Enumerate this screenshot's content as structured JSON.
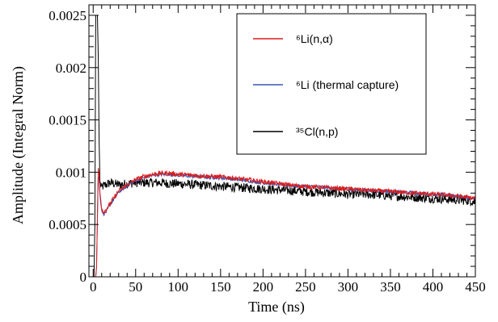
{
  "chart_data": {
    "type": "line",
    "title": "",
    "xlabel": "Time (ns)",
    "ylabel": "Amplitude (Integral Norm)",
    "xlim": [
      -5,
      450
    ],
    "ylim": [
      0,
      0.0026
    ],
    "x_ticks": [
      0,
      50,
      100,
      150,
      200,
      250,
      300,
      350,
      400,
      450
    ],
    "x_tick_labels": [
      "0",
      "50",
      "100",
      "150",
      "200",
      "250",
      "300",
      "350",
      "400",
      "450"
    ],
    "y_ticks": [
      0,
      0.0005,
      0.001,
      0.0015,
      0.002,
      0.0025
    ],
    "y_tick_labels": [
      "0",
      "0.0005",
      "0.001",
      "0.0015",
      "0.002",
      "0.0025"
    ],
    "grid": false,
    "legend_position": "top-right",
    "series": [
      {
        "name": "⁶Li(n,α)",
        "color": "#dd1c1c",
        "x": [
          -5,
          0,
          1,
          2,
          3,
          4,
          5,
          6,
          7,
          8,
          10,
          12,
          15,
          20,
          25,
          30,
          40,
          50,
          60,
          70,
          80,
          90,
          100,
          120,
          140,
          160,
          180,
          200,
          220,
          240,
          260,
          280,
          300,
          320,
          340,
          360,
          380,
          400,
          420,
          440,
          450
        ],
        "y": [
          0.0,
          0.0,
          0.0,
          0.0,
          0.0,
          0.0001,
          0.0006,
          0.00104,
          0.00098,
          0.0008,
          0.00066,
          0.00062,
          0.00064,
          0.0007,
          0.00076,
          0.00082,
          0.00088,
          0.00093,
          0.00096,
          0.00098,
          0.00099,
          0.00099,
          0.00098,
          0.00097,
          0.00096,
          0.00095,
          0.00093,
          0.00091,
          0.00089,
          0.00087,
          0.00086,
          0.00085,
          0.00084,
          0.00083,
          0.00082,
          0.00081,
          0.0008,
          0.00079,
          0.00078,
          0.00076,
          0.00075
        ]
      },
      {
        "name": "⁶Li (thermal capture)",
        "color": "#3a57b0",
        "x": [
          -5,
          0,
          1,
          2,
          3,
          4,
          5,
          6,
          7,
          8,
          10,
          12,
          15,
          20,
          25,
          30,
          40,
          50,
          60,
          70,
          80,
          90,
          100,
          120,
          140,
          160,
          180,
          200,
          220,
          240,
          260,
          280,
          300,
          320,
          340,
          360,
          380,
          400,
          420,
          440,
          450
        ],
        "y": [
          0.0,
          0.0,
          0.0,
          0.0,
          0.0,
          0.0001,
          0.00055,
          0.00096,
          0.00093,
          0.00078,
          0.00064,
          0.0006,
          0.00062,
          0.00069,
          0.00075,
          0.00081,
          0.00087,
          0.00092,
          0.00095,
          0.00097,
          0.00098,
          0.00098,
          0.00097,
          0.00096,
          0.00095,
          0.00094,
          0.00092,
          0.0009,
          0.00088,
          0.00087,
          0.00086,
          0.00085,
          0.00084,
          0.00083,
          0.00082,
          0.00081,
          0.0008,
          0.00079,
          0.00078,
          0.00076,
          0.00075
        ]
      },
      {
        "name": "³⁵Cl(n,p)",
        "color": "#000000",
        "x": [
          -5,
          0,
          1,
          2,
          3,
          4,
          5,
          6,
          7,
          8,
          10,
          12,
          15,
          20,
          25,
          30,
          40,
          50,
          60,
          70,
          80,
          90,
          100,
          120,
          140,
          160,
          180,
          200,
          220,
          240,
          260,
          280,
          300,
          320,
          340,
          360,
          380,
          400,
          420,
          440,
          450
        ],
        "y": [
          0.0,
          0.0,
          0.0,
          0.0005,
          0.0025,
          0.0025,
          0.0025,
          0.0021,
          0.0013,
          0.0009,
          0.00085,
          0.00087,
          0.00088,
          0.0009,
          0.00089,
          0.00088,
          0.00089,
          0.0009,
          0.0009,
          0.0009,
          0.0009,
          0.00089,
          0.00089,
          0.00088,
          0.00087,
          0.00086,
          0.00085,
          0.00084,
          0.00083,
          0.00082,
          0.00081,
          0.0008,
          0.00079,
          0.00079,
          0.00078,
          0.00077,
          0.00076,
          0.00075,
          0.00074,
          0.00073,
          0.00072
        ]
      }
    ],
    "legend": [
      {
        "label": "⁶Li(n,α)",
        "color": "#dd1c1c"
      },
      {
        "label": "⁶Li (thermal capture)",
        "color": "#3a57b0"
      },
      {
        "label": "³⁵Cl(n,p)",
        "color": "#000000"
      }
    ]
  }
}
